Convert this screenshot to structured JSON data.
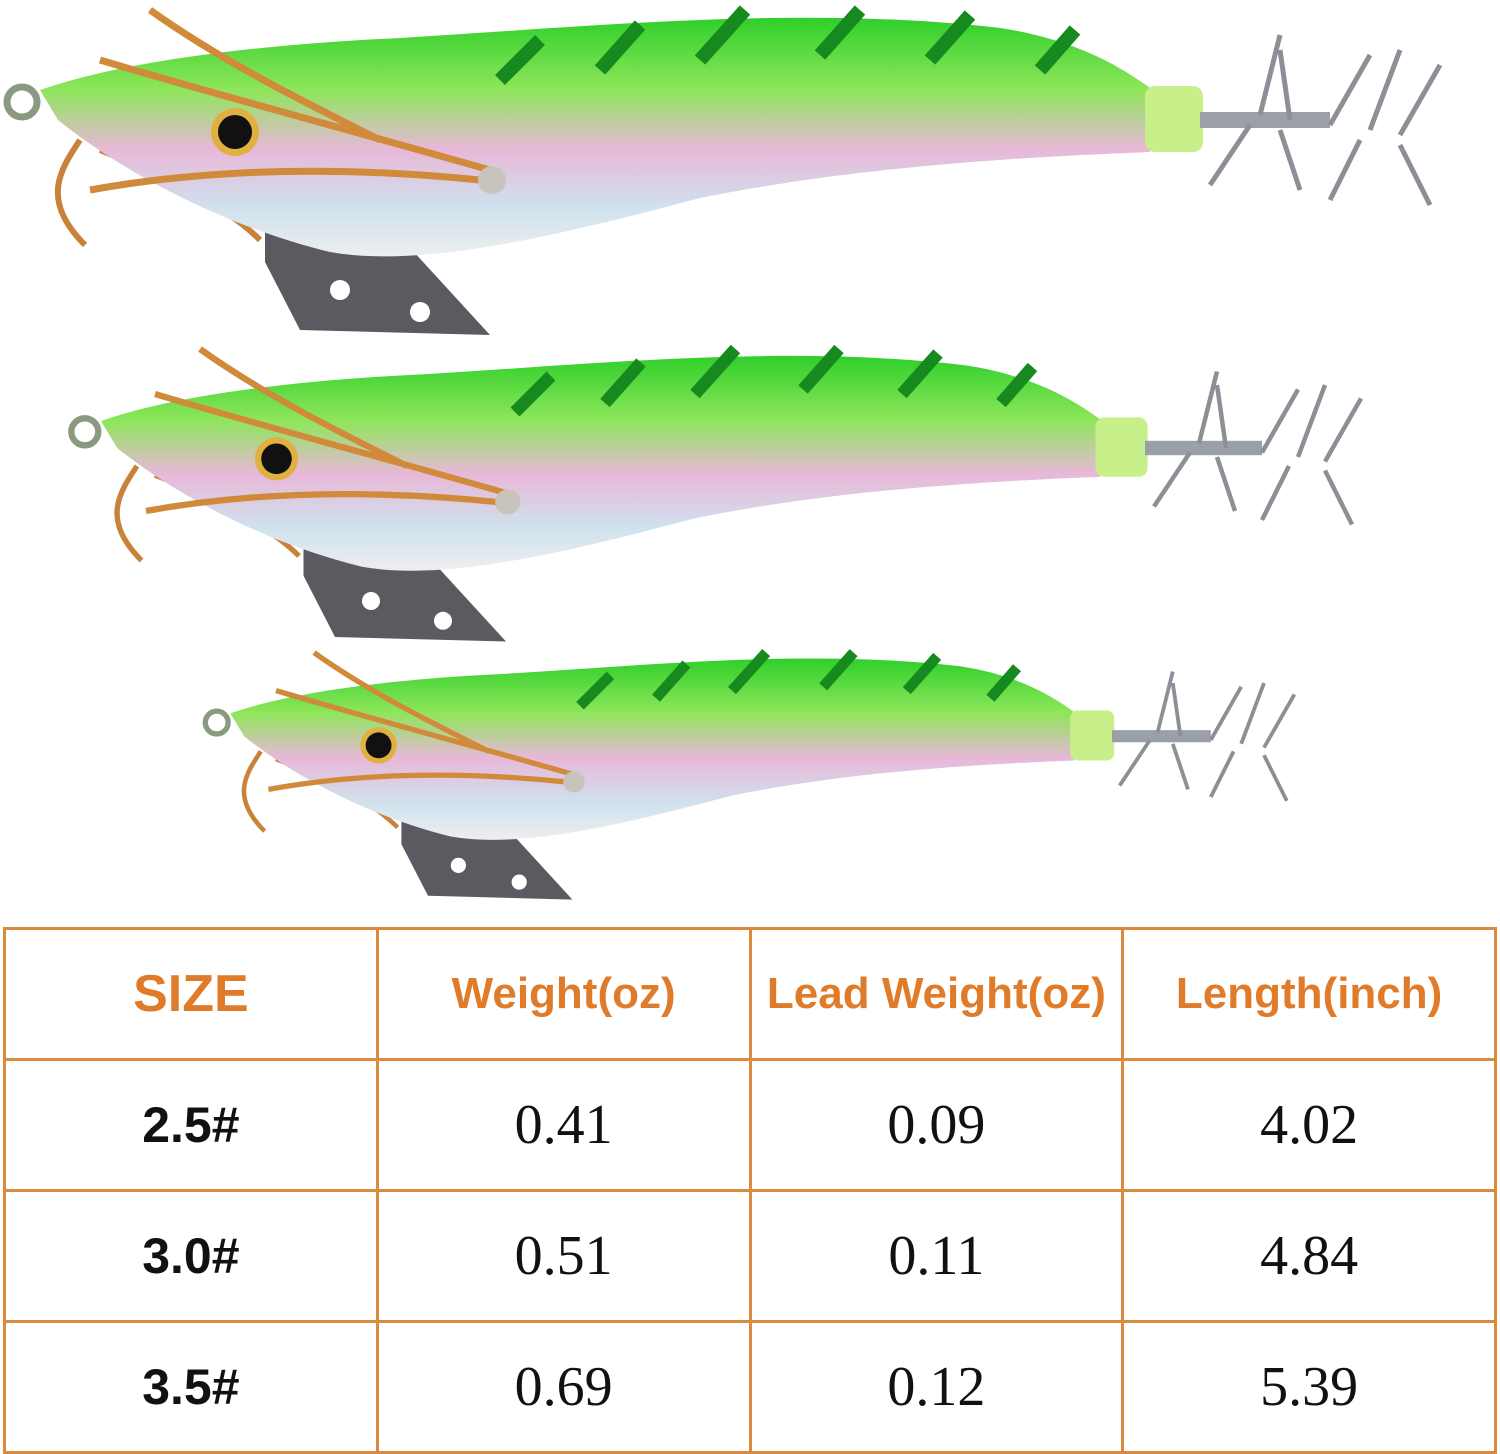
{
  "table": {
    "header": [
      "SIZE",
      "Weight(oz)",
      "Lead Weight(oz)",
      "Length(inch)"
    ],
    "rows": [
      [
        "2.5#",
        "0.41",
        "0.09",
        "4.02"
      ],
      [
        "3.0#",
        "0.51",
        "0.11",
        "4.84"
      ],
      [
        "3.5#",
        "0.69",
        "0.12",
        "5.39"
      ]
    ]
  }
}
